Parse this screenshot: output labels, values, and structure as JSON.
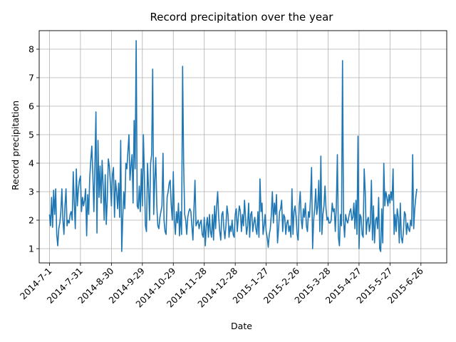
{
  "chart_data": {
    "type": "line",
    "title": "Record precipitation over the year",
    "xlabel": "Date",
    "ylabel": "Record precipitation",
    "x_tick_labels": [
      "2014-7-1",
      "2014-7-31",
      "2014-8-30",
      "2014-9-29",
      "2014-10-29",
      "2014-11-28",
      "2014-12-28",
      "2015-1-27",
      "2015-2-26",
      "2015-3-28",
      "2015-4-27",
      "2015-5-27",
      "2015-6-26"
    ],
    "y_tick_values": [
      1,
      2,
      3,
      4,
      5,
      6,
      7,
      8
    ],
    "x_range_days": [
      -10,
      385
    ],
    "ylim": [
      0.5,
      8.65
    ],
    "grid": true,
    "series": [
      {
        "color": "#1f77b4",
        "x_start": "2014-7-1",
        "step": "1 day",
        "values": [
          2.2,
          1.8,
          2.8,
          1.75,
          3.05,
          2.2,
          3.1,
          1.5,
          1.1,
          1.7,
          1.9,
          2.3,
          3.1,
          2.0,
          1.5,
          2.5,
          3.1,
          1.8,
          2.0,
          1.9,
          2.2,
          2.3,
          2.0,
          3.7,
          2.6,
          1.7,
          3.8,
          2.5,
          3.1,
          3.4,
          3.55,
          2.3,
          2.8,
          2.5,
          2.7,
          3.1,
          1.45,
          2.9,
          2.2,
          3.5,
          4.1,
          4.6,
          3.6,
          2.3,
          3.9,
          5.8,
          1.55,
          4.8,
          2.8,
          3.9,
          2.6,
          4.1,
          3.2,
          2.0,
          3.6,
          1.85,
          2.7,
          4.15,
          3.9,
          3.3,
          2.5,
          3.6,
          3.85,
          2.1,
          3.4,
          3.0,
          2.4,
          3.3,
          2.1,
          4.8,
          0.9,
          2.1,
          3.0,
          2.4,
          4.0,
          3.8,
          4.4,
          5.0,
          3.4,
          3.9,
          4.3,
          2.6,
          5.5,
          3.8,
          8.3,
          2.5,
          2.4,
          3.2,
          2.3,
          3.8,
          2.5,
          5.0,
          3.5,
          1.8,
          1.6,
          4.0,
          3.1,
          2.0,
          4.0,
          4.3,
          7.3,
          2.2,
          3.4,
          4.2,
          2.5,
          1.8,
          1.7,
          2.1,
          2.3,
          2.5,
          4.35,
          2.0,
          1.6,
          1.5,
          2.8,
          3.0,
          3.3,
          3.4,
          2.5,
          2.0,
          3.7,
          2.0,
          1.5,
          2.3,
          1.9,
          2.6,
          1.45,
          2.3,
          1.5,
          7.4,
          4.0,
          2.2,
          2.0,
          1.5,
          2.1,
          2.3,
          2.4,
          2.3,
          1.8,
          1.3,
          2.4,
          3.4,
          1.8,
          1.9,
          2.0,
          1.7,
          1.9,
          2.0,
          1.5,
          1.4,
          2.1,
          1.1,
          1.8,
          2.1,
          1.4,
          2.2,
          1.6,
          1.4,
          2.2,
          1.3,
          2.5,
          1.7,
          2.5,
          3.0,
          2.1,
          1.6,
          1.3,
          2.2,
          2.3,
          1.7,
          1.35,
          1.8,
          2.5,
          2.2,
          1.4,
          1.8,
          1.6,
          2.0,
          1.5,
          1.4,
          2.2,
          2.4,
          1.6,
          2.1,
          2.5,
          2.3,
          1.6,
          2.2,
          1.8,
          2.7,
          2.1,
          1.5,
          1.8,
          2.6,
          1.4,
          2.2,
          2.3,
          1.6,
          1.9,
          2.1,
          1.7,
          1.5,
          2.3,
          1.4,
          3.45,
          2.3,
          2.6,
          1.5,
          1.8,
          2.2,
          1.6,
          1.4,
          1.05,
          1.5,
          1.7,
          2.2,
          3.0,
          1.9,
          2.6,
          2.2,
          2.9,
          1.2,
          1.7,
          2.3,
          2.4,
          2.7,
          1.6,
          2.2,
          2.1,
          1.5,
          1.9,
          2.0,
          1.6,
          1.8,
          1.4,
          3.1,
          1.5,
          2.3,
          2.5,
          2.1,
          1.5,
          1.3,
          2.5,
          3.0,
          2.0,
          1.7,
          2.4,
          2.1,
          2.6,
          1.8,
          1.6,
          2.3,
          2.1,
          2.8,
          3.85,
          1.0,
          2.0,
          2.4,
          3.1,
          2.2,
          2.5,
          3.4,
          1.6,
          4.25,
          1.5,
          2.2,
          2.5,
          3.2,
          2.4,
          2.0,
          2.1,
          1.9,
          1.9,
          2.0,
          2.6,
          2.3,
          2.4,
          1.6,
          2.5,
          4.3,
          1.4,
          1.1,
          2.2,
          1.8,
          7.6,
          2.0,
          1.4,
          2.2,
          2.0,
          1.9,
          2.1,
          2.3,
          2.4,
          2.0,
          2.1,
          2.6,
          1.7,
          2.7,
          1.5,
          4.95,
          1.0,
          2.2,
          2.1,
          1.5,
          1.4,
          3.8,
          3.0,
          1.5,
          2.0,
          2.1,
          1.6,
          1.9,
          3.4,
          1.3,
          2.5,
          1.2,
          2.0,
          2.1,
          1.7,
          2.8,
          1.0,
          0.9,
          2.4,
          1.2,
          4.0,
          2.5,
          3.0,
          2.8,
          2.5,
          2.9,
          2.6,
          3.0,
          2.7,
          3.8,
          1.5,
          2.2,
          1.6,
          2.4,
          2.1,
          1.2,
          2.6,
          1.4,
          1.2,
          1.6,
          2.3,
          2.2,
          1.5,
          1.9,
          1.7,
          1.6,
          2.0,
          1.8,
          4.3,
          1.7,
          2.4,
          2.8,
          3.1
        ]
      }
    ]
  }
}
